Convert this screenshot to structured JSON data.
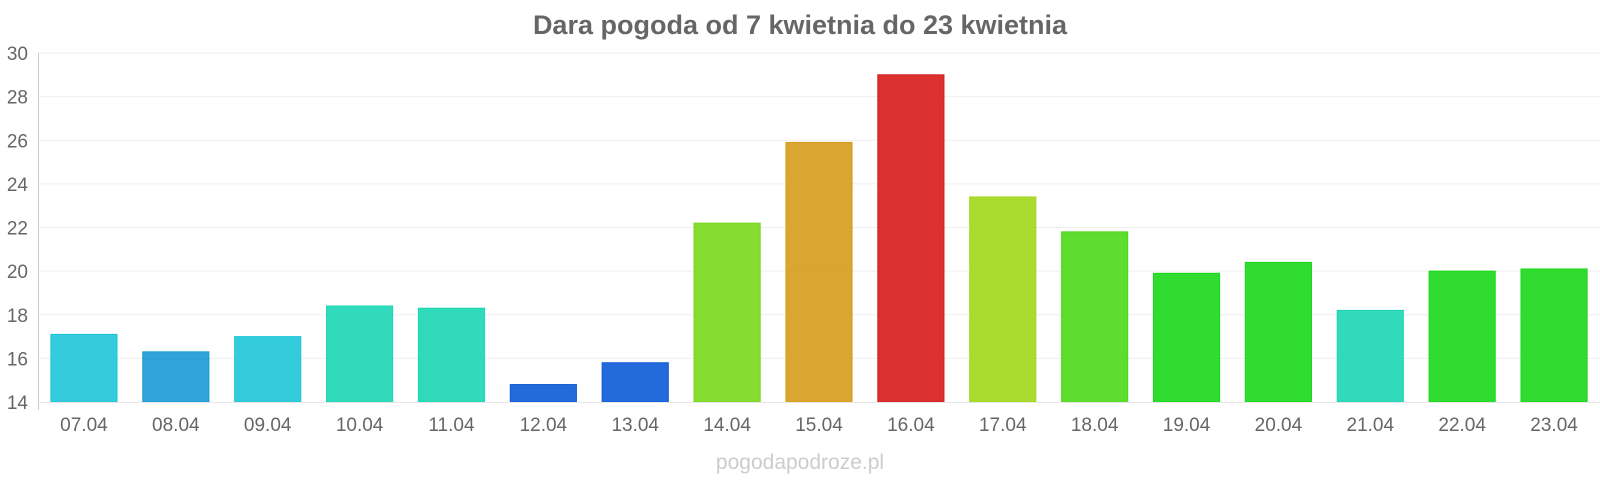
{
  "chart_data": {
    "type": "bar",
    "title": "Dara pogoda od 7 kwietnia do 23 kwietnia",
    "xlabel": "",
    "ylabel": "",
    "categories": [
      "07.04",
      "08.04",
      "09.04",
      "10.04",
      "11.04",
      "12.04",
      "13.04",
      "14.04",
      "15.04",
      "16.04",
      "17.04",
      "18.04",
      "19.04",
      "20.04",
      "21.04",
      "22.04",
      "23.04"
    ],
    "values": [
      17.1,
      16.3,
      17.0,
      18.4,
      18.3,
      14.8,
      15.8,
      22.2,
      25.9,
      29.0,
      23.4,
      21.8,
      19.9,
      20.4,
      18.2,
      20.0,
      20.1
    ],
    "colors": [
      "#1ec6d8",
      "#1a99d6",
      "#1ec6d8",
      "#1bd6b4",
      "#1bd6b4",
      "#0b5ad6",
      "#0b5ad6",
      "#7ad81a",
      "#d69b1a",
      "#d61a1a",
      "#a1d81a",
      "#4cd81a",
      "#1ad81a",
      "#1ad81a",
      "#1bd6b4",
      "#1ad81a",
      "#1ad81a"
    ],
    "ylim": [
      14,
      30
    ],
    "yticks": [
      14,
      16,
      18,
      20,
      22,
      24,
      26,
      28,
      30
    ],
    "grid": true,
    "legend": "none"
  },
  "footer": {
    "source": "pogodapodroze.pl"
  }
}
